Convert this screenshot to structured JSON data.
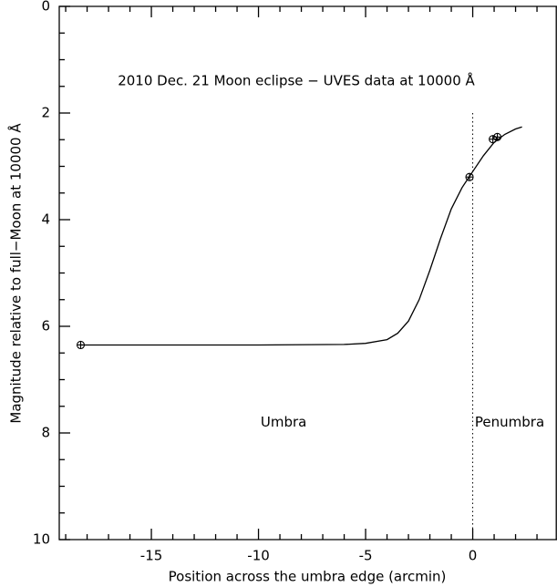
{
  "chart_data": {
    "type": "line",
    "title": "2010 Dec. 21 Moon eclipse − UVES data at 10000 Å",
    "x_label": "Position across the umbra edge (arcmin)",
    "y_label": "Magnitude relative to full−Moon at 10000 Å",
    "xlim": [
      -19.3,
      3.9
    ],
    "ylim": [
      0,
      10
    ],
    "y_inverted": true,
    "xticks": [
      -15,
      -10,
      -5,
      0
    ],
    "yticks": [
      0,
      2,
      4,
      6,
      8,
      10
    ],
    "xminorticks": [
      -19,
      -18,
      -17,
      -16,
      -14,
      -13,
      -12,
      -11,
      -9,
      -8,
      -7,
      -6,
      -4,
      -3,
      -2,
      -1,
      1,
      2,
      3
    ],
    "yminorticks": [
      0.5,
      1,
      1.5,
      2.5,
      3,
      3.5,
      4.5,
      5,
      5.5,
      6.5,
      7,
      7.5,
      8.5,
      9,
      9.5
    ],
    "curve": {
      "x": [
        -18.3,
        -10,
        -6,
        -5,
        -4,
        -3.5,
        -3,
        -2.5,
        -2,
        -1.5,
        -1,
        -0.5,
        0,
        0.5,
        1,
        1.5,
        2,
        2.3
      ],
      "y": [
        6.35,
        6.35,
        6.34,
        6.32,
        6.25,
        6.13,
        5.9,
        5.5,
        4.95,
        4.35,
        3.8,
        3.4,
        3.1,
        2.8,
        2.55,
        2.4,
        2.3,
        2.26
      ]
    },
    "points": {
      "x": [
        -18.3,
        -0.15,
        0.94,
        1.15
      ],
      "y": [
        6.35,
        3.2,
        2.49,
        2.45
      ]
    },
    "reference_line_x": 0,
    "annotations": [
      {
        "text": "Umbra",
        "x": -9.9,
        "y": 7.8
      },
      {
        "text": "Penumbra",
        "x": 0.1,
        "y": 7.8
      }
    ]
  }
}
